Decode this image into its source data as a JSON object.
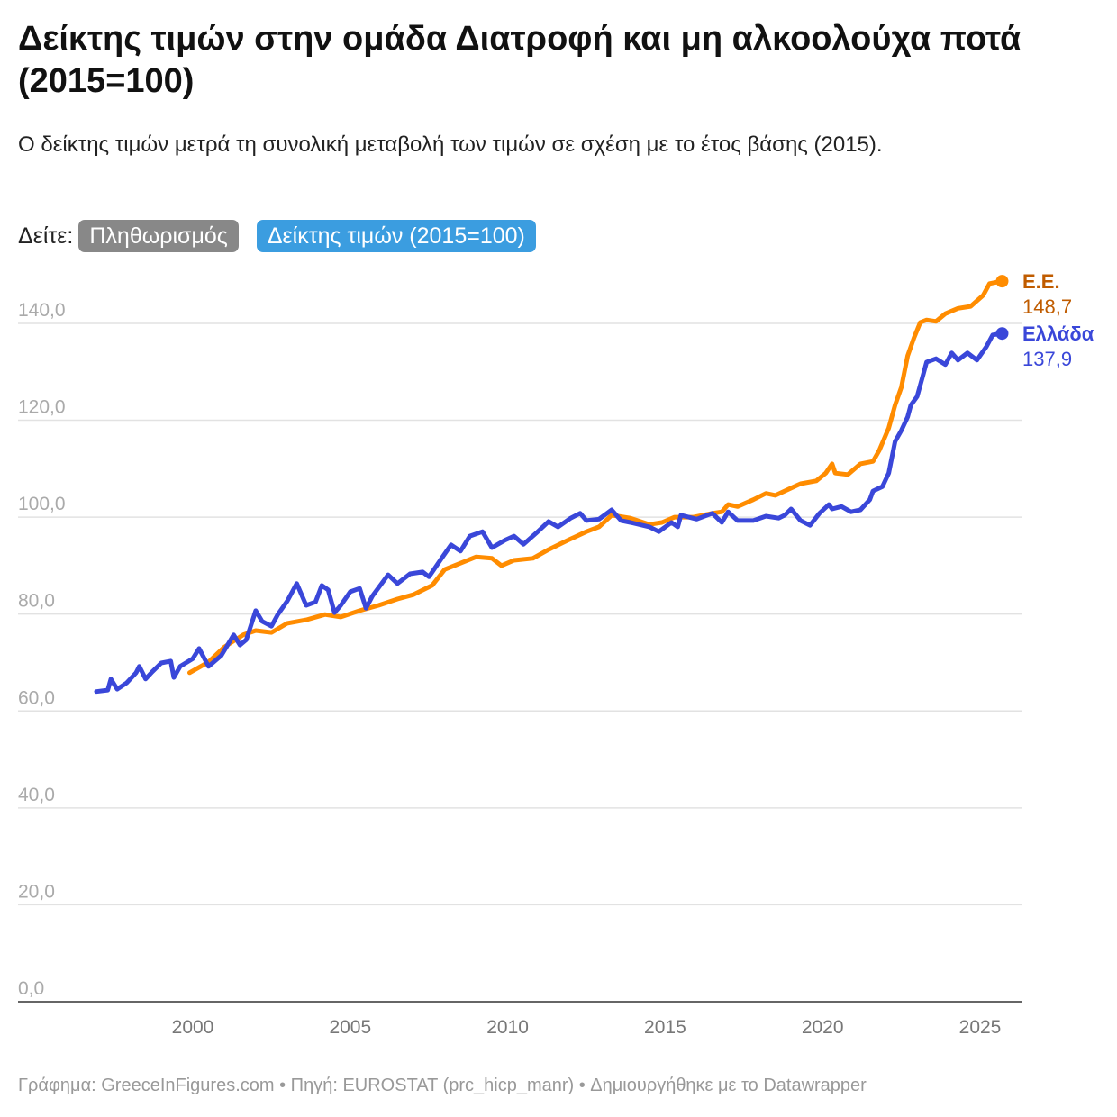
{
  "header": {
    "title": "Δείκτης τιμών στην ομάδα Διατροφή και μη αλκοολούχα ποτά (2015=100)",
    "subtitle": "Ο δείκτης τιμών μετρά τη συνολική μεταβολή των τιμών σε σχέση με το έτος βάσης (2015).",
    "see_label": "Δείτε:",
    "buttons": [
      "Πληθωρισμός",
      "Δείκτης τιμών (2015=100)"
    ]
  },
  "footer": "Γράφημα: GreeceInFigures.com • Πηγή: EUROSTAT (prc_hicp_manr) • Δημιουργήθηκε με το Datawrapper",
  "chart_data": {
    "type": "line",
    "title": "Δείκτης τιμών στην ομάδα Διατροφή και μη αλκοολούχα ποτά (2015=100)",
    "ylim": [
      0,
      150
    ],
    "xlim": [
      1996.5,
      2026.2
    ],
    "yticks": [
      "0,0",
      "20,0",
      "40,0",
      "60,0",
      "80,0",
      "100,0",
      "120,0",
      "140,0"
    ],
    "ytick_values": [
      0,
      20,
      40,
      60,
      80,
      100,
      120,
      140
    ],
    "xticks": [
      "2000",
      "2005",
      "2010",
      "2015",
      "2020",
      "2025"
    ],
    "xtick_values": [
      2000,
      2005,
      2010,
      2015,
      2020,
      2025
    ],
    "grid": true,
    "series": [
      {
        "name": "Ε.Ε.",
        "end_label": "148,7",
        "color": "#ff8c00",
        "label_color": "#c05c00",
        "points": [
          [
            1999.9,
            67.9
          ],
          [
            2000.5,
            70.1
          ],
          [
            2001.0,
            73.2
          ],
          [
            2001.6,
            75.7
          ],
          [
            2002.0,
            76.6
          ],
          [
            2002.5,
            76.2
          ],
          [
            2003.0,
            78.1
          ],
          [
            2003.6,
            78.8
          ],
          [
            2004.2,
            79.9
          ],
          [
            2004.7,
            79.4
          ],
          [
            2005.3,
            80.7
          ],
          [
            2005.9,
            81.8
          ],
          [
            2006.5,
            83.1
          ],
          [
            2007.0,
            84.0
          ],
          [
            2007.6,
            85.9
          ],
          [
            2008.0,
            89.2
          ],
          [
            2008.5,
            90.5
          ],
          [
            2009.0,
            91.8
          ],
          [
            2009.5,
            91.5
          ],
          [
            2009.8,
            90.0
          ],
          [
            2010.2,
            91.1
          ],
          [
            2010.8,
            91.5
          ],
          [
            2011.3,
            93.3
          ],
          [
            2011.9,
            95.2
          ],
          [
            2012.5,
            97.0
          ],
          [
            2012.9,
            98.0
          ],
          [
            2013.3,
            100.4
          ],
          [
            2013.9,
            99.8
          ],
          [
            2014.5,
            98.5
          ],
          [
            2014.9,
            98.9
          ],
          [
            2015.3,
            100.0
          ],
          [
            2015.9,
            100.0
          ],
          [
            2016.5,
            100.8
          ],
          [
            2016.8,
            101.1
          ],
          [
            2017.0,
            102.6
          ],
          [
            2017.3,
            102.2
          ],
          [
            2017.8,
            103.6
          ],
          [
            2018.2,
            104.9
          ],
          [
            2018.5,
            104.5
          ],
          [
            2019.1,
            106.3
          ],
          [
            2019.3,
            106.9
          ],
          [
            2019.8,
            107.5
          ],
          [
            2020.1,
            109.1
          ],
          [
            2020.3,
            111.0
          ],
          [
            2020.4,
            109.1
          ],
          [
            2020.8,
            108.8
          ],
          [
            2021.2,
            111.0
          ],
          [
            2021.6,
            111.5
          ],
          [
            2021.8,
            113.8
          ],
          [
            2022.1,
            118.4
          ],
          [
            2022.3,
            123.1
          ],
          [
            2022.5,
            126.8
          ],
          [
            2022.7,
            133.3
          ],
          [
            2022.9,
            137.0
          ],
          [
            2023.1,
            140.2
          ],
          [
            2023.3,
            140.7
          ],
          [
            2023.6,
            140.4
          ],
          [
            2023.9,
            142.0
          ],
          [
            2024.3,
            143.1
          ],
          [
            2024.7,
            143.5
          ],
          [
            2025.1,
            145.8
          ],
          [
            2025.3,
            148.2
          ],
          [
            2025.7,
            148.7
          ]
        ]
      },
      {
        "name": "Ελλάδα",
        "end_label": "137,9",
        "color": "#3a47d9",
        "label_color": "#3a47d9",
        "points": [
          [
            1996.94,
            64.0
          ],
          [
            1997.3,
            64.3
          ],
          [
            1997.4,
            66.6
          ],
          [
            1997.6,
            64.5
          ],
          [
            1997.9,
            65.8
          ],
          [
            1998.2,
            67.9
          ],
          [
            1998.3,
            69.2
          ],
          [
            1998.5,
            66.6
          ],
          [
            1998.7,
            68.0
          ],
          [
            1999.0,
            69.9
          ],
          [
            1999.3,
            70.3
          ],
          [
            1999.4,
            66.9
          ],
          [
            1999.6,
            69.2
          ],
          [
            2000.0,
            70.8
          ],
          [
            2000.2,
            72.9
          ],
          [
            2000.5,
            69.2
          ],
          [
            2000.9,
            71.4
          ],
          [
            2001.3,
            75.7
          ],
          [
            2001.5,
            73.6
          ],
          [
            2001.7,
            74.7
          ],
          [
            2002.0,
            80.7
          ],
          [
            2002.2,
            78.5
          ],
          [
            2002.5,
            77.5
          ],
          [
            2002.7,
            79.9
          ],
          [
            2003.0,
            82.7
          ],
          [
            2003.3,
            86.3
          ],
          [
            2003.6,
            81.8
          ],
          [
            2003.9,
            82.5
          ],
          [
            2004.1,
            85.9
          ],
          [
            2004.3,
            85.0
          ],
          [
            2004.5,
            80.3
          ],
          [
            2004.7,
            81.8
          ],
          [
            2005.0,
            84.6
          ],
          [
            2005.3,
            85.3
          ],
          [
            2005.5,
            81.2
          ],
          [
            2005.7,
            83.7
          ],
          [
            2006.2,
            88.1
          ],
          [
            2006.5,
            86.3
          ],
          [
            2006.9,
            88.3
          ],
          [
            2007.3,
            88.7
          ],
          [
            2007.5,
            87.7
          ],
          [
            2007.9,
            91.5
          ],
          [
            2008.2,
            94.3
          ],
          [
            2008.5,
            93.0
          ],
          [
            2008.8,
            96.1
          ],
          [
            2009.2,
            97.0
          ],
          [
            2009.5,
            93.7
          ],
          [
            2009.9,
            95.2
          ],
          [
            2010.2,
            96.1
          ],
          [
            2010.5,
            94.4
          ],
          [
            2010.9,
            96.7
          ],
          [
            2011.3,
            99.1
          ],
          [
            2011.6,
            98.0
          ],
          [
            2012.0,
            99.8
          ],
          [
            2012.3,
            100.8
          ],
          [
            2012.5,
            99.3
          ],
          [
            2012.9,
            99.6
          ],
          [
            2013.3,
            101.5
          ],
          [
            2013.6,
            99.3
          ],
          [
            2013.9,
            98.9
          ],
          [
            2014.5,
            98.0
          ],
          [
            2014.8,
            97.0
          ],
          [
            2015.2,
            98.9
          ],
          [
            2015.4,
            98.0
          ],
          [
            2015.5,
            100.4
          ],
          [
            2016.0,
            99.6
          ],
          [
            2016.5,
            100.8
          ],
          [
            2016.8,
            98.9
          ],
          [
            2017.0,
            101.1
          ],
          [
            2017.3,
            99.3
          ],
          [
            2017.8,
            99.3
          ],
          [
            2018.2,
            100.2
          ],
          [
            2018.6,
            99.8
          ],
          [
            2018.8,
            100.4
          ],
          [
            2019.0,
            101.7
          ],
          [
            2019.3,
            99.3
          ],
          [
            2019.6,
            98.3
          ],
          [
            2019.9,
            100.8
          ],
          [
            2020.2,
            102.6
          ],
          [
            2020.3,
            101.7
          ],
          [
            2020.6,
            102.2
          ],
          [
            2020.9,
            101.1
          ],
          [
            2021.2,
            101.5
          ],
          [
            2021.5,
            103.6
          ],
          [
            2021.6,
            105.4
          ],
          [
            2021.9,
            106.3
          ],
          [
            2022.1,
            109.1
          ],
          [
            2022.3,
            115.6
          ],
          [
            2022.5,
            117.9
          ],
          [
            2022.7,
            120.7
          ],
          [
            2022.8,
            123.1
          ],
          [
            2023.0,
            124.9
          ],
          [
            2023.2,
            129.6
          ],
          [
            2023.3,
            132.0
          ],
          [
            2023.6,
            132.7
          ],
          [
            2023.9,
            131.5
          ],
          [
            2024.1,
            133.9
          ],
          [
            2024.3,
            132.4
          ],
          [
            2024.6,
            133.9
          ],
          [
            2024.9,
            132.4
          ],
          [
            2025.2,
            135.2
          ],
          [
            2025.4,
            137.6
          ],
          [
            2025.7,
            137.9
          ]
        ]
      }
    ]
  }
}
